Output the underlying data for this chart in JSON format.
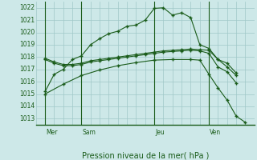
{
  "title": "Pression niveau de la mer( hPa )",
  "bg_color": "#cde8e8",
  "grid_color": "#a0c8c8",
  "line_color": "#1a5c1a",
  "ylim": [
    1012.5,
    1022.5
  ],
  "yticks": [
    1013,
    1014,
    1015,
    1016,
    1017,
    1018,
    1019,
    1020,
    1021,
    1022
  ],
  "xlim": [
    0,
    24
  ],
  "day_labels": [
    "Mer",
    "Sam",
    "Jeu",
    "Ven"
  ],
  "day_positions": [
    1,
    5,
    13,
    19
  ],
  "series1_x": [
    1,
    2,
    3,
    4,
    5,
    6,
    7,
    8,
    9,
    10,
    11,
    12,
    13,
    14,
    15,
    16,
    17,
    18,
    19,
    20,
    21,
    22
  ],
  "series1_y": [
    1015.2,
    1016.6,
    1017.0,
    1017.8,
    1018.1,
    1019.0,
    1019.5,
    1019.9,
    1020.1,
    1020.5,
    1020.6,
    1021.0,
    1021.95,
    1022.0,
    1021.4,
    1021.6,
    1021.2,
    1019.0,
    1018.7,
    1017.8,
    1017.2,
    1016.5
  ],
  "series2_x": [
    1,
    2,
    3,
    4,
    5,
    6,
    7,
    8,
    9,
    10,
    11,
    12,
    13,
    14,
    15,
    16,
    17,
    18,
    19,
    20,
    21,
    22
  ],
  "series2_y": [
    1017.9,
    1017.6,
    1017.4,
    1017.4,
    1017.5,
    1017.7,
    1017.8,
    1017.9,
    1018.0,
    1018.1,
    1018.2,
    1018.3,
    1018.4,
    1018.5,
    1018.55,
    1018.6,
    1018.65,
    1018.6,
    1018.55,
    1017.8,
    1017.5,
    1016.7
  ],
  "series3_x": [
    1,
    2,
    3,
    4,
    5,
    6,
    7,
    8,
    9,
    10,
    11,
    12,
    13,
    14,
    15,
    16,
    17,
    18,
    19,
    20,
    21,
    22
  ],
  "series3_y": [
    1017.8,
    1017.5,
    1017.3,
    1017.3,
    1017.4,
    1017.6,
    1017.7,
    1017.8,
    1017.9,
    1018.0,
    1018.1,
    1018.2,
    1018.3,
    1018.4,
    1018.45,
    1018.5,
    1018.55,
    1018.5,
    1018.3,
    1017.2,
    1016.8,
    1015.9
  ],
  "series4_x": [
    1,
    3,
    5,
    7,
    9,
    11,
    13,
    15,
    17,
    18,
    19,
    20,
    21,
    22,
    23
  ],
  "series4_y": [
    1015.0,
    1015.8,
    1016.5,
    1016.95,
    1017.3,
    1017.55,
    1017.75,
    1017.8,
    1017.8,
    1017.75,
    1016.6,
    1015.5,
    1014.5,
    1013.2,
    1012.7
  ]
}
